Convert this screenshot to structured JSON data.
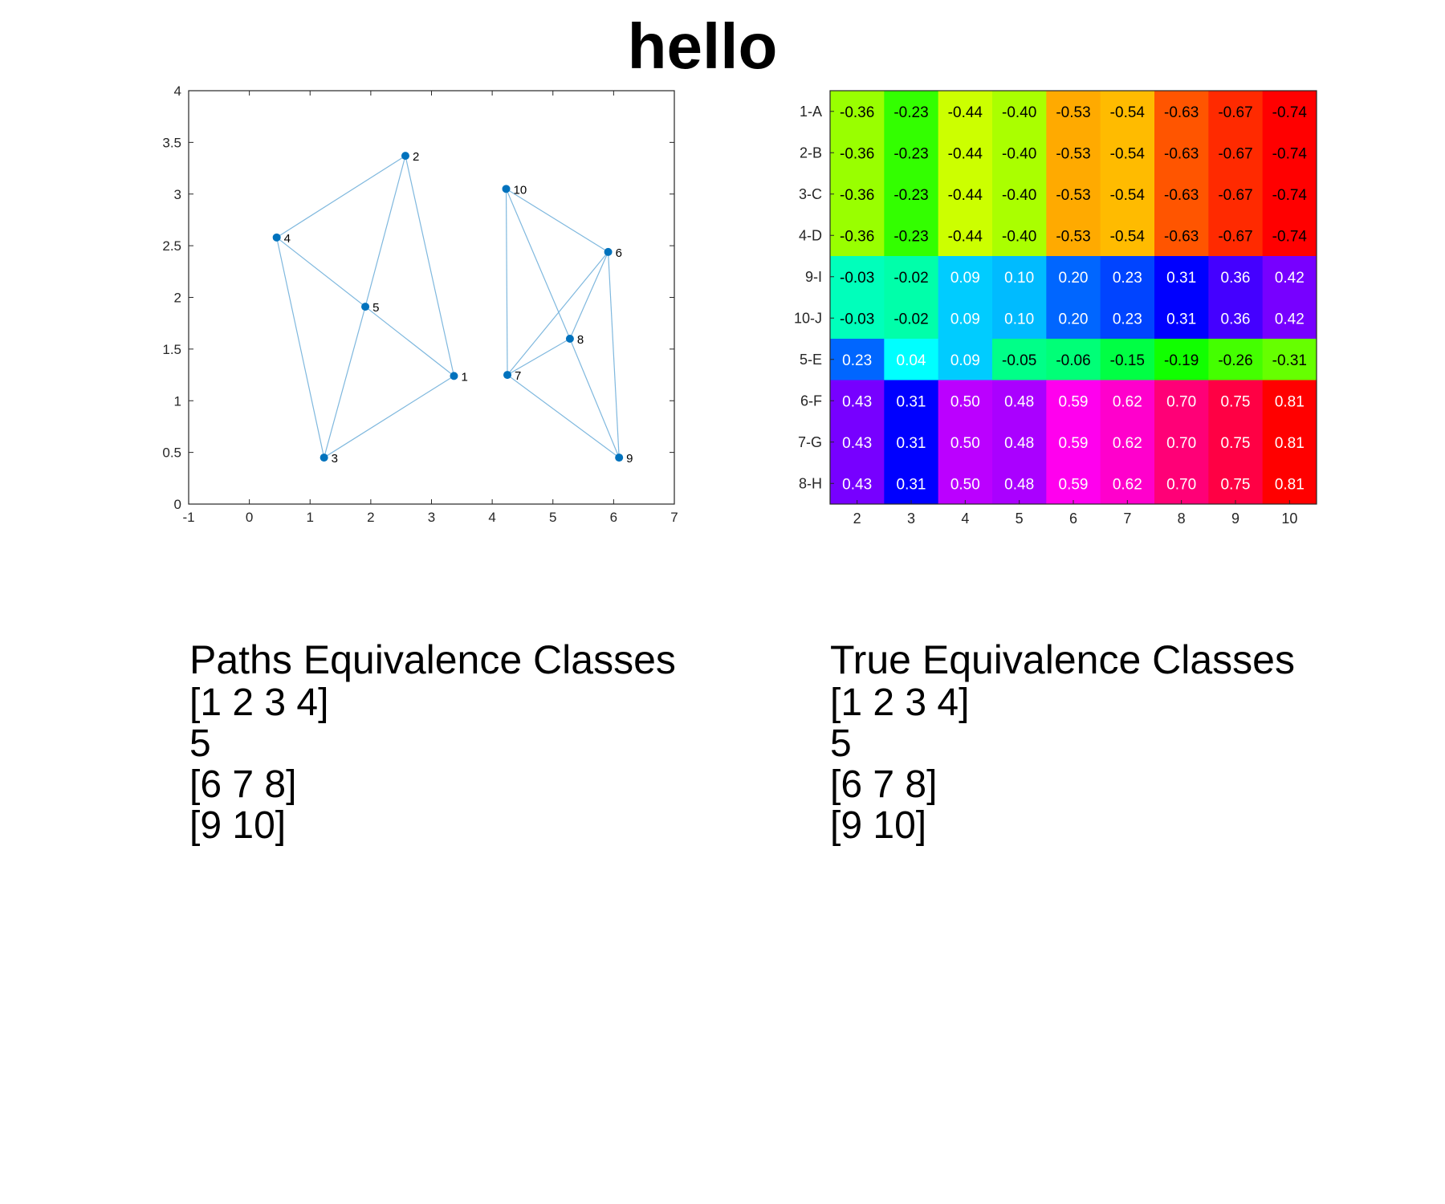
{
  "title": "hello",
  "chart_data": [
    {
      "type": "scatter",
      "subtype": "network-graph",
      "xlim": [
        -1,
        7
      ],
      "ylim": [
        0,
        4
      ],
      "xticks": [
        -1,
        0,
        1,
        2,
        3,
        4,
        5,
        6,
        7
      ],
      "yticks": [
        0,
        0.5,
        1,
        1.5,
        2,
        2.5,
        3,
        3.5,
        4
      ],
      "node_color": "#0072BD",
      "edge_color": "#7fb8de",
      "nodes": [
        {
          "label": "1",
          "x": 3.37,
          "y": 1.24
        },
        {
          "label": "2",
          "x": 2.57,
          "y": 3.37
        },
        {
          "label": "3",
          "x": 1.23,
          "y": 0.45
        },
        {
          "label": "4",
          "x": 0.45,
          "y": 2.58
        },
        {
          "label": "5",
          "x": 1.91,
          "y": 1.91
        },
        {
          "label": "6",
          "x": 5.91,
          "y": 2.44
        },
        {
          "label": "7",
          "x": 4.25,
          "y": 1.25
        },
        {
          "label": "8",
          "x": 5.28,
          "y": 1.6
        },
        {
          "label": "9",
          "x": 6.09,
          "y": 0.45
        },
        {
          "label": "10",
          "x": 4.23,
          "y": 3.05
        }
      ],
      "edges": [
        [
          4,
          2
        ],
        [
          2,
          5
        ],
        [
          2,
          1
        ],
        [
          4,
          5
        ],
        [
          4,
          3
        ],
        [
          5,
          1
        ],
        [
          5,
          3
        ],
        [
          3,
          1
        ],
        [
          10,
          6
        ],
        [
          10,
          7
        ],
        [
          10,
          8
        ],
        [
          6,
          7
        ],
        [
          6,
          8
        ],
        [
          6,
          9
        ],
        [
          7,
          8
        ],
        [
          7,
          9
        ],
        [
          8,
          9
        ]
      ]
    },
    {
      "type": "heatmap",
      "colormap": "hsv",
      "row_labels": [
        "1-A",
        "2-B",
        "3-C",
        "4-D",
        "9-I",
        "10-J",
        "5-E",
        "6-F",
        "7-G",
        "8-H"
      ],
      "col_labels": [
        "2",
        "3",
        "4",
        "5",
        "6",
        "7",
        "8",
        "9",
        "10"
      ],
      "values": [
        [
          -0.36,
          -0.23,
          -0.44,
          -0.4,
          -0.53,
          -0.54,
          -0.63,
          -0.67,
          -0.74
        ],
        [
          -0.36,
          -0.23,
          -0.44,
          -0.4,
          -0.53,
          -0.54,
          -0.63,
          -0.67,
          -0.74
        ],
        [
          -0.36,
          -0.23,
          -0.44,
          -0.4,
          -0.53,
          -0.54,
          -0.63,
          -0.67,
          -0.74
        ],
        [
          -0.36,
          -0.23,
          -0.44,
          -0.4,
          -0.53,
          -0.54,
          -0.63,
          -0.67,
          -0.74
        ],
        [
          -0.03,
          -0.02,
          0.09,
          0.1,
          0.2,
          0.23,
          0.31,
          0.36,
          0.42
        ],
        [
          -0.03,
          -0.02,
          0.09,
          0.1,
          0.2,
          0.23,
          0.31,
          0.36,
          0.42
        ],
        [
          0.23,
          0.04,
          0.09,
          -0.05,
          -0.06,
          -0.15,
          -0.19,
          -0.26,
          -0.31
        ],
        [
          0.43,
          0.31,
          0.5,
          0.48,
          0.59,
          0.62,
          0.7,
          0.75,
          0.81
        ],
        [
          0.43,
          0.31,
          0.5,
          0.48,
          0.59,
          0.62,
          0.7,
          0.75,
          0.81
        ],
        [
          0.43,
          0.31,
          0.5,
          0.48,
          0.59,
          0.62,
          0.7,
          0.75,
          0.81
        ]
      ],
      "cell_colors": [
        [
          "#99ff00",
          "#33ff00",
          "#ccff00",
          "#aaff00",
          "#ffaa00",
          "#ffbb00",
          "#ff5500",
          "#ff2a00",
          "#ff0000"
        ],
        [
          "#99ff00",
          "#33ff00",
          "#ccff00",
          "#aaff00",
          "#ffaa00",
          "#ffbb00",
          "#ff5500",
          "#ff2a00",
          "#ff0000"
        ],
        [
          "#99ff00",
          "#33ff00",
          "#ccff00",
          "#aaff00",
          "#ffaa00",
          "#ffbb00",
          "#ff5500",
          "#ff2a00",
          "#ff0000"
        ],
        [
          "#99ff00",
          "#33ff00",
          "#ccff00",
          "#aaff00",
          "#ffaa00",
          "#ffbb00",
          "#ff5500",
          "#ff2a00",
          "#ff0000"
        ],
        [
          "#00ffbb",
          "#00ffaa",
          "#00ccff",
          "#00bbff",
          "#0066ff",
          "#0044ff",
          "#0000ff",
          "#4400ff",
          "#7700ff"
        ],
        [
          "#00ffbb",
          "#00ffaa",
          "#00ccff",
          "#00bbff",
          "#0066ff",
          "#0044ff",
          "#0000ff",
          "#4400ff",
          "#7700ff"
        ],
        [
          "#0066ff",
          "#00ffff",
          "#00ccff",
          "#00ff88",
          "#00ff77",
          "#00ff44",
          "#11ff00",
          "#44ff00",
          "#66ff00"
        ],
        [
          "#7700ff",
          "#0000ff",
          "#bb00ff",
          "#aa00ff",
          "#ff00ee",
          "#ff00cc",
          "#ff0077",
          "#ff0044",
          "#ff0000"
        ],
        [
          "#7700ff",
          "#0000ff",
          "#bb00ff",
          "#aa00ff",
          "#ff00ee",
          "#ff00cc",
          "#ff0077",
          "#ff0044",
          "#ff0000"
        ],
        [
          "#7700ff",
          "#0000ff",
          "#bb00ff",
          "#aa00ff",
          "#ff00ee",
          "#ff00cc",
          "#ff0077",
          "#ff0044",
          "#ff0000"
        ]
      ],
      "text_colors": [
        [
          "#000000",
          "#000000",
          "#000000",
          "#000000",
          "#000000",
          "#000000",
          "#000000",
          "#000000",
          "#000000"
        ],
        [
          "#000000",
          "#000000",
          "#000000",
          "#000000",
          "#000000",
          "#000000",
          "#000000",
          "#000000",
          "#000000"
        ],
        [
          "#000000",
          "#000000",
          "#000000",
          "#000000",
          "#000000",
          "#000000",
          "#000000",
          "#000000",
          "#000000"
        ],
        [
          "#000000",
          "#000000",
          "#000000",
          "#000000",
          "#000000",
          "#000000",
          "#000000",
          "#000000",
          "#000000"
        ],
        [
          "#000000",
          "#000000",
          "#ffffff",
          "#ffffff",
          "#ffffff",
          "#ffffff",
          "#ffffff",
          "#ffffff",
          "#ffffff"
        ],
        [
          "#000000",
          "#000000",
          "#ffffff",
          "#ffffff",
          "#ffffff",
          "#ffffff",
          "#ffffff",
          "#ffffff",
          "#ffffff"
        ],
        [
          "#ffffff",
          "#ffffff",
          "#ffffff",
          "#000000",
          "#000000",
          "#000000",
          "#000000",
          "#000000",
          "#000000"
        ],
        [
          "#ffffff",
          "#ffffff",
          "#ffffff",
          "#ffffff",
          "#ffffff",
          "#ffffff",
          "#ffffff",
          "#ffffff",
          "#ffffff"
        ],
        [
          "#ffffff",
          "#ffffff",
          "#ffffff",
          "#ffffff",
          "#ffffff",
          "#ffffff",
          "#ffffff",
          "#ffffff",
          "#ffffff"
        ],
        [
          "#ffffff",
          "#ffffff",
          "#ffffff",
          "#ffffff",
          "#ffffff",
          "#ffffff",
          "#ffffff",
          "#ffffff",
          "#ffffff"
        ]
      ]
    }
  ],
  "paths_panel": {
    "title": "Paths Equivalence Classes",
    "lines": [
      "[1 2 3 4]",
      "5",
      "[6 7 8]",
      "[9 10]"
    ]
  },
  "true_panel": {
    "title": "True Equivalence Classes",
    "lines": [
      "[1 2 3 4]",
      "5",
      "[6 7 8]",
      "[9 10]"
    ]
  }
}
